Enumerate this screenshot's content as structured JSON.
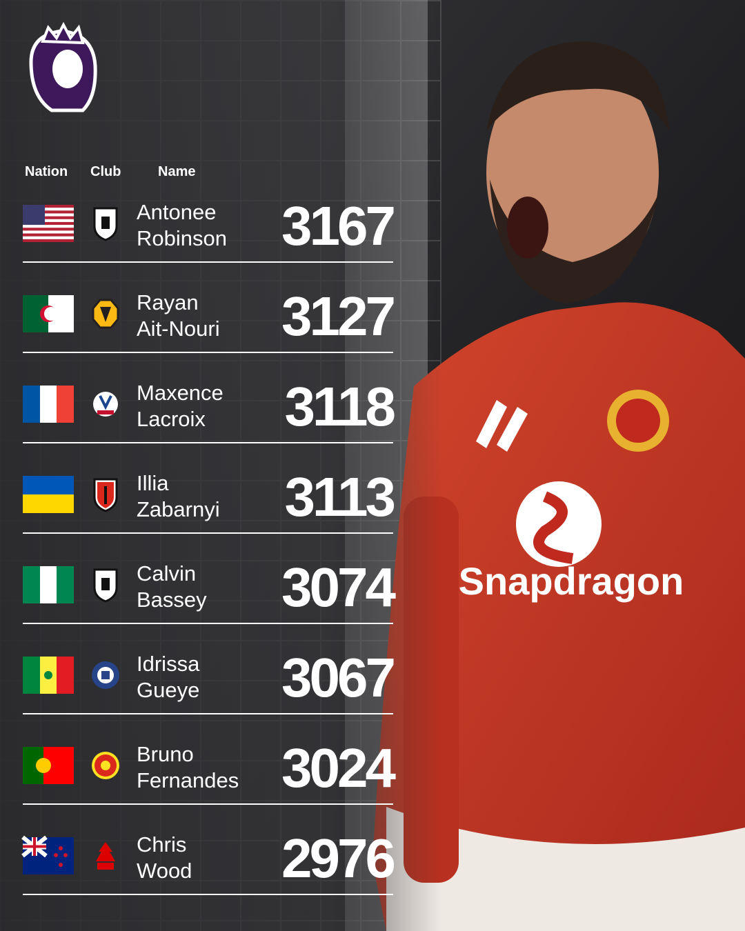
{
  "header": {
    "columns": [
      "Nation",
      "Club",
      "Name"
    ]
  },
  "table": {
    "rows": [
      {
        "first": "Antonee",
        "last": "Robinson",
        "value": 3167
      },
      {
        "first": "Rayan",
        "last": "Ait-Nouri",
        "value": 3127
      },
      {
        "first": "Maxence",
        "last": "Lacroix",
        "value": 3118
      },
      {
        "first": "Illia",
        "last": "Zabarnyi",
        "value": 3113
      },
      {
        "first": "Calvin",
        "last": "Bassey",
        "value": 3074
      },
      {
        "first": "Idrissa",
        "last": "Gueye",
        "value": 3067
      },
      {
        "first": "Bruno",
        "last": "Fernandes",
        "value": 3024
      },
      {
        "first": "Chris",
        "last": "Wood",
        "value": 2976
      }
    ]
  },
  "photo": {
    "shirt_sponsor": "Snapdragon"
  }
}
